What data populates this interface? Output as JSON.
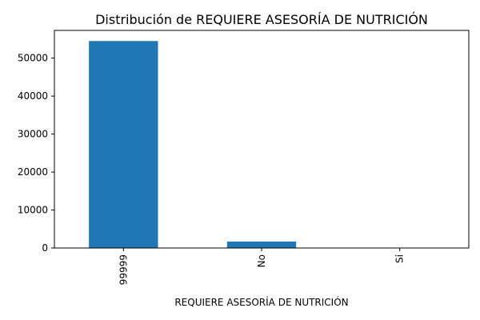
{
  "chart_data": {
    "type": "bar",
    "title": "Distribución de REQUIERE ASESORÍA DE NUTRICIÓN",
    "xlabel": "REQUIERE ASESORÍA DE NUTRICIÓN",
    "ylabel": "",
    "categories": [
      "99999",
      "No",
      "Si"
    ],
    "values": [
      54500,
      1700,
      40
    ],
    "ylim": [
      0,
      57300
    ],
    "yticks": [
      0,
      10000,
      20000,
      30000,
      40000,
      50000
    ],
    "ytick_labels": [
      "0",
      "10000",
      "20000",
      "30000",
      "40000",
      "50000"
    ],
    "grid": false,
    "legend": "none",
    "bar_color": "#1f77b4"
  }
}
